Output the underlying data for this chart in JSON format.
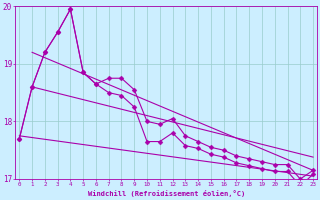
{
  "xlabel": "Windchill (Refroidissement éolien,°C)",
  "x": [
    0,
    1,
    2,
    3,
    4,
    5,
    6,
    7,
    8,
    9,
    10,
    11,
    12,
    13,
    14,
    15,
    16,
    17,
    18,
    19,
    20,
    21,
    22,
    23
  ],
  "line1": [
    17.7,
    18.6,
    19.2,
    19.55,
    19.95,
    18.85,
    18.65,
    18.75,
    18.75,
    18.55,
    18.0,
    17.95,
    18.05,
    17.75,
    17.65,
    17.55,
    17.5,
    17.4,
    17.35,
    17.3,
    17.25,
    17.25,
    17.0,
    17.15
  ],
  "line2": [
    17.7,
    18.6,
    19.2,
    19.55,
    19.95,
    18.85,
    18.65,
    18.5,
    18.45,
    18.25,
    17.65,
    17.65,
    17.8,
    17.58,
    17.53,
    17.43,
    17.38,
    17.28,
    17.23,
    17.18,
    17.13,
    17.13,
    16.88,
    17.08
  ],
  "trend1_x": [
    1,
    23
  ],
  "trend1_y": [
    19.2,
    17.15
  ],
  "trend2_x": [
    1,
    23
  ],
  "trend2_y": [
    18.6,
    17.38
  ],
  "trend3_x": [
    0,
    23
  ],
  "trend3_y": [
    17.75,
    17.05
  ],
  "ylim": [
    17.0,
    20.0
  ],
  "xlim": [
    -0.3,
    23.3
  ],
  "yticks": [
    17,
    18,
    19,
    20
  ],
  "xticks": [
    0,
    1,
    2,
    3,
    4,
    5,
    6,
    7,
    8,
    9,
    10,
    11,
    12,
    13,
    14,
    15,
    16,
    17,
    18,
    19,
    20,
    21,
    22,
    23
  ],
  "line_color": "#aa00aa",
  "bg_color": "#cceeff",
  "grid_color": "#99cccc",
  "marker": "D",
  "marker_size": 2.5,
  "line_width": 0.8
}
